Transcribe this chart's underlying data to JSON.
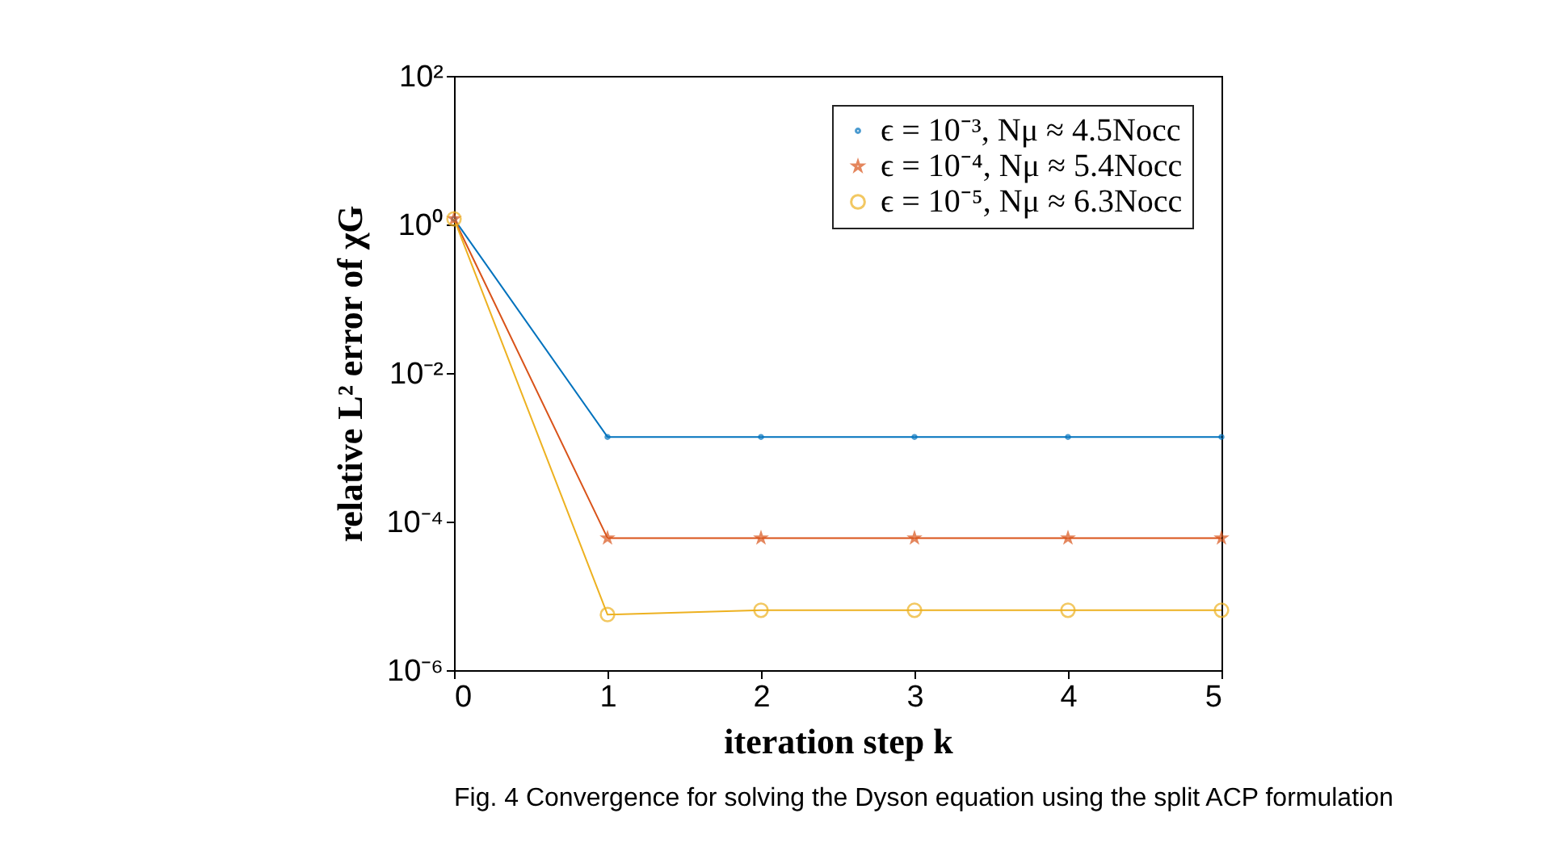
{
  "chart_data": {
    "type": "line",
    "xlabel": "iteration step k",
    "ylabel": "relative L² error of χG",
    "annotations": [
      "Fig. 4  Convergence for solving the Dyson equation using the split ACP formulation"
    ],
    "x": [
      0,
      1,
      2,
      3,
      4,
      5
    ],
    "series": [
      {
        "name": "ϵ = 10⁻³, Nμ ≈ 4.5Nocc",
        "color": "#0072bd",
        "marker": "point",
        "values": [
          1.19,
          0.00138,
          0.00138,
          0.00138,
          0.00138,
          0.00138
        ]
      },
      {
        "name": "ϵ = 10⁻⁴, Nμ ≈ 5.4Nocc",
        "color": "#d95319",
        "marker": "star",
        "values": [
          1.19,
          6e-05,
          6e-05,
          6e-05,
          6e-05,
          6e-05
        ]
      },
      {
        "name": "ϵ = 10⁻⁵, Nμ ≈ 6.3Nocc",
        "color": "#edb120",
        "marker": "circle",
        "values": [
          1.19,
          5.6e-06,
          6.4e-06,
          6.4e-06,
          6.4e-06,
          6.4e-06
        ]
      }
    ],
    "log": "y",
    "xlim": [
      0,
      5
    ],
    "xticks": [
      0,
      1,
      2,
      3,
      4,
      5
    ],
    "ylim": [
      1e-06,
      100
    ],
    "yticks": [
      {
        "value": 1e-06,
        "label": "10⁻⁶"
      },
      {
        "value": 0.0001,
        "label": "10⁻⁴"
      },
      {
        "value": 0.01,
        "label": "10⁻²"
      },
      {
        "value": 1,
        "label": "10⁰"
      },
      {
        "value": 100,
        "label": "10²"
      }
    ],
    "grid": false,
    "legend": "top right",
    "line_style": "solid"
  }
}
